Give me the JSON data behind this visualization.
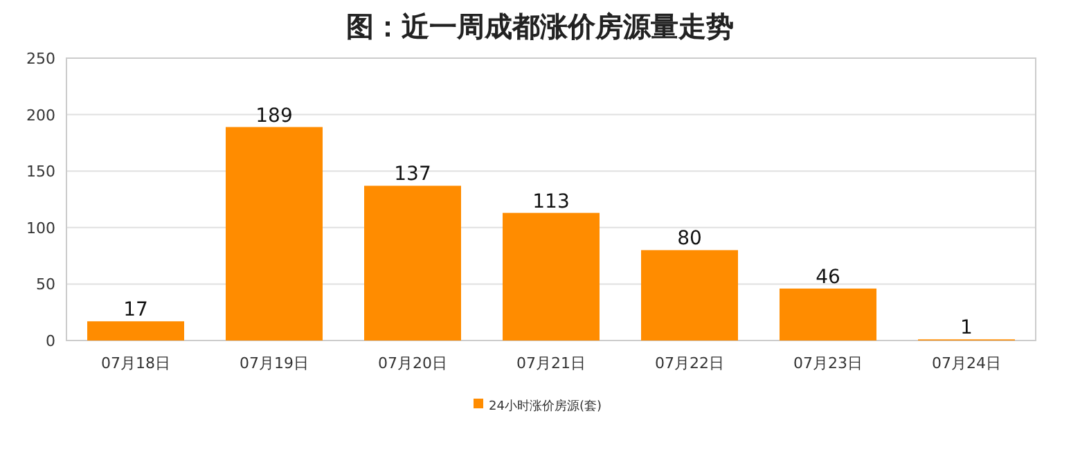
{
  "chart_data": {
    "type": "bar",
    "title": "图：近一周成都涨价房源量走势",
    "categories": [
      "07月18日",
      "07月19日",
      "07月20日",
      "07月21日",
      "07月22日",
      "07月23日",
      "07月24日"
    ],
    "series": [
      {
        "name": "24小时涨价房源(套)",
        "color": "#ff8c00",
        "values": [
          17,
          189,
          137,
          113,
          80,
          46,
          1
        ]
      }
    ],
    "ylim": [
      0,
      250
    ],
    "yticks": [
      0,
      50,
      100,
      150,
      200,
      250
    ],
    "grid": "y",
    "data_labels": true,
    "legend": "bottom"
  }
}
